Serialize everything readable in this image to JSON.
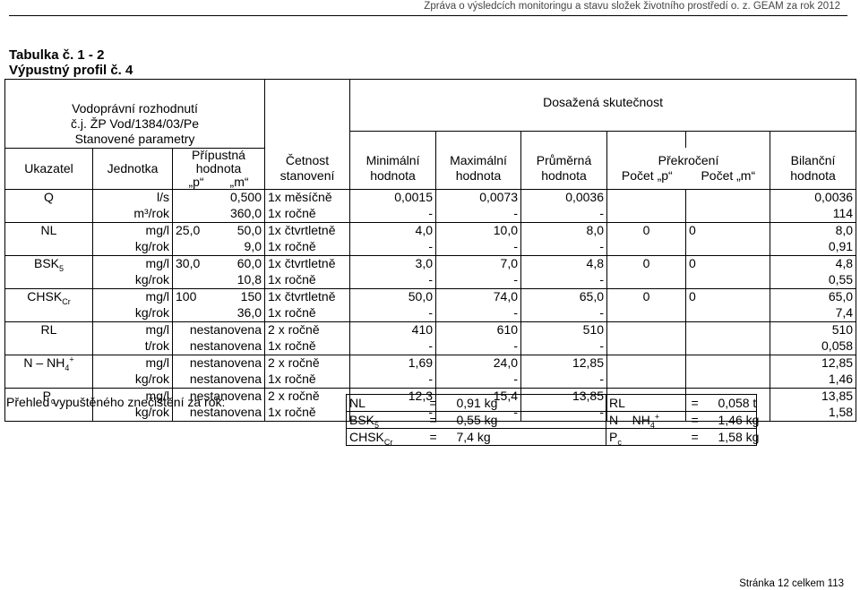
{
  "header": "Zpráva o výsledcích monitoringu a stavu složek životního prostředí o. z. GEAM za rok 2012",
  "title": "Tabulka č. 1 - 2",
  "subtitle": "Výpustný profil č. 4",
  "table": {
    "permit_line1": "Vodoprávní rozhodnutí",
    "permit_line2": "č.j. ŽP Vod/1384/03/Pe",
    "achieved": "Dosažená skutečnost",
    "set_params": "Stanovené parametry",
    "col_ukazatel": "Ukazatel",
    "col_jednotka": "Jednotka",
    "col_pripustna1": "Přípustná",
    "col_pripustna2": "hodnota",
    "col_p": "„p“",
    "col_m": "„m“",
    "col_cetnost1": "Četnost",
    "col_cetnost2": "stanovení",
    "col_min1": "Minimální",
    "col_min2": "hodnota",
    "col_max1": "Maximální",
    "col_max2": "hodnota",
    "col_avg1": "Průměrná",
    "col_avg2": "hodnota",
    "col_exceed": "Překročení",
    "col_count_p": "Počet „p“",
    "col_count_m": "Počet „m“",
    "col_bal1": "Bilanční",
    "col_bal2": "hodnota",
    "rows": [
      {
        "ind": "Q",
        "r1": {
          "unit": "l/s",
          "p": "",
          "m": "0,500",
          "freq": "1x měsíčně",
          "min": "0,0015",
          "max": "0,0073",
          "avg": "0,0036",
          "cp": "",
          "cm": "",
          "bal": "0,0036"
        },
        "r2": {
          "unit": "m³/rok",
          "p": "",
          "m": "360,0",
          "freq": "1x ročně",
          "min": "-",
          "max": "-",
          "avg": "-",
          "bal": "114"
        }
      },
      {
        "ind": "NL",
        "r1": {
          "unit": "mg/l",
          "p": "25,0",
          "m": "50,0",
          "freq": "1x čtvrtletně",
          "min": "4,0",
          "max": "10,0",
          "avg": "8,0",
          "cp": "0",
          "cm": "0",
          "bal": "8,0"
        },
        "r2": {
          "unit": "kg/rok",
          "p": "",
          "m": "9,0",
          "freq": "1x ročně",
          "min": "-",
          "max": "-",
          "avg": "-",
          "bal": "0,91"
        }
      },
      {
        "ind": "BSK",
        "sub": "5",
        "r1": {
          "unit": "mg/l",
          "p": "30,0",
          "m": "60,0",
          "freq": "1x čtvrtletně",
          "min": "3,0",
          "max": "7,0",
          "avg": "4,8",
          "cp": "0",
          "cm": "0",
          "bal": "4,8"
        },
        "r2": {
          "unit": "kg/rok",
          "p": "",
          "m": "10,8",
          "freq": "1x ročně",
          "min": "-",
          "max": "-",
          "avg": "-",
          "bal": "0,55"
        }
      },
      {
        "ind": "CHSK",
        "sub": "Cr",
        "r1": {
          "unit": "mg/l",
          "p": "100",
          "m": "150",
          "freq": "1x čtvrtletně",
          "min": "50,0",
          "max": "74,0",
          "avg": "65,0",
          "cp": "0",
          "cm": "0",
          "bal": "65,0"
        },
        "r2": {
          "unit": "kg/rok",
          "p": "",
          "m": "36,0",
          "freq": "1x ročně",
          "min": "-",
          "max": "-",
          "avg": "-",
          "bal": "7,4"
        }
      },
      {
        "ind": "RL",
        "r1": {
          "unit": "mg/l",
          "pm": "nestanovena",
          "freq": "2 x ročně",
          "min": "410",
          "max": "610",
          "avg": "510",
          "cp": "",
          "cm": "",
          "bal": "510"
        },
        "r2": {
          "unit": "t/rok",
          "pm": "nestanovena",
          "freq": "1x ročně",
          "min": "-",
          "max": "-",
          "avg": "-",
          "bal": "0,058"
        }
      },
      {
        "ind": "N – NH",
        "sub": "4",
        "sup": "+",
        "r1": {
          "unit": "mg/l",
          "pm": "nestanovena",
          "freq": "2 x ročně",
          "min": "1,69",
          "max": "24,0",
          "avg": "12,85",
          "cp": "",
          "cm": "",
          "bal": "12,85"
        },
        "r2": {
          "unit": "kg/rok",
          "pm": "nestanovena",
          "freq": "1x ročně",
          "min": "-",
          "max": "-",
          "avg": "-",
          "bal": "1,46"
        }
      },
      {
        "ind": "P",
        "sub": "c",
        "r1": {
          "unit": "mg/l",
          "pm": "nestanovena",
          "freq": "2 x ročně",
          "min": "12,3",
          "max": "15,4",
          "avg": "13,85",
          "cp": "",
          "cm": "",
          "bal": "13,85"
        },
        "r2": {
          "unit": "kg/rok",
          "pm": "nestanovena",
          "freq": "1x ročně",
          "min": "-",
          "max": "-",
          "avg": "-",
          "bal": "1,58"
        }
      }
    ]
  },
  "summary": {
    "label": "Přehled vypuštěného znečištění za rok:",
    "rows": [
      [
        {
          "n": "NL"
        },
        {
          "eq": "="
        },
        {
          "v": "0,91 kg"
        },
        {
          "n": "RL"
        },
        {
          "eq": "="
        },
        {
          "v": "0,058 t"
        }
      ],
      [
        {
          "n": "BSK",
          "sub": "5"
        },
        {
          "eq": "="
        },
        {
          "v": "0,55 kg"
        },
        {
          "n": "N – NH",
          "sub": "4",
          "sup": "+"
        },
        {
          "eq": "="
        },
        {
          "v": "1,46 kg"
        }
      ],
      [
        {
          "n": "CHSK",
          "sub": "Cr"
        },
        {
          "eq": "="
        },
        {
          "v": "7,4 kg"
        },
        {
          "n": "P",
          "sub": "c"
        },
        {
          "eq": "="
        },
        {
          "v": "1,58 kg"
        }
      ]
    ]
  },
  "footer": "Stránka 12 celkem 113"
}
